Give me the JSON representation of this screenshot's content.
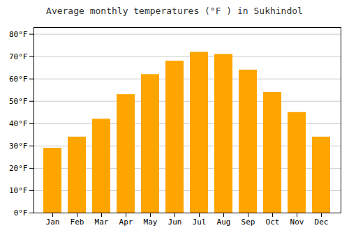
{
  "chart_data": {
    "type": "bar",
    "title": "Average monthly temperatures (°F ) in Sukhindol",
    "categories": [
      "Jan",
      "Feb",
      "Mar",
      "Apr",
      "May",
      "Jun",
      "Jul",
      "Aug",
      "Sep",
      "Oct",
      "Nov",
      "Dec"
    ],
    "values": [
      29,
      34,
      42,
      53,
      62,
      68,
      72,
      71,
      64,
      54,
      45,
      34
    ],
    "color": "#FFA500",
    "ylim": [
      0,
      83
    ],
    "yticks": [
      {
        "value": 0,
        "label": "0°F"
      },
      {
        "value": 10,
        "label": "10°F"
      },
      {
        "value": 20,
        "label": "20°F"
      },
      {
        "value": 30,
        "label": "30°F"
      },
      {
        "value": 40,
        "label": "40°F"
      },
      {
        "value": 50,
        "label": "50°F"
      },
      {
        "value": 60,
        "label": "60°F"
      },
      {
        "value": 70,
        "label": "70°F"
      },
      {
        "value": 80,
        "label": "80°F"
      }
    ],
    "grid": true
  }
}
